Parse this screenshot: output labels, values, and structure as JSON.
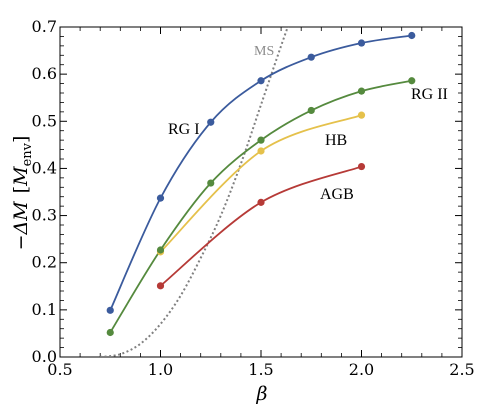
{
  "chart_data": {
    "type": "line",
    "title": "",
    "xlabel": "β",
    "ylabel_symbol": "−ΔM",
    "ylabel_unit_base": "M",
    "ylabel_unit_sub": "env",
    "xlim": [
      0.5,
      2.5
    ],
    "ylim": [
      0.0,
      0.7
    ],
    "xticks": [
      "0.5",
      "1.0",
      "1.5",
      "2.0",
      "2.5"
    ],
    "yticks": [
      "0.0",
      "0.1",
      "0.2",
      "0.3",
      "0.4",
      "0.5",
      "0.6",
      "0.7"
    ],
    "grid": false,
    "series": [
      {
        "name": "RG I",
        "color": "#3b5b9d",
        "x": [
          0.75,
          1.0,
          1.25,
          1.5,
          1.75,
          2.0,
          2.25
        ],
        "y": [
          0.099,
          0.337,
          0.498,
          0.586,
          0.636,
          0.666,
          0.682
        ]
      },
      {
        "name": "RG II",
        "color": "#558a3e",
        "x": [
          0.75,
          1.0,
          1.25,
          1.5,
          1.75,
          2.0,
          2.25
        ],
        "y": [
          0.052,
          0.227,
          0.369,
          0.46,
          0.523,
          0.564,
          0.586
        ]
      },
      {
        "name": "HB",
        "color": "#e5c14b",
        "x": [
          1.0,
          1.5,
          2.0
        ],
        "y": [
          0.223,
          0.437,
          0.513
        ]
      },
      {
        "name": "AGB",
        "color": "#b63a37",
        "x": [
          1.0,
          1.5,
          2.0
        ],
        "y": [
          0.151,
          0.328,
          0.404
        ]
      },
      {
        "name": "MS",
        "color": "#808080",
        "style": "dotted",
        "markers": false,
        "x": [
          0.7,
          0.8,
          0.9,
          1.0,
          1.1,
          1.2,
          1.3,
          1.4,
          1.5,
          1.6,
          1.65
        ],
        "y": [
          0.0,
          0.006,
          0.028,
          0.07,
          0.13,
          0.21,
          0.3,
          0.41,
          0.535,
          0.66,
          0.72
        ]
      }
    ]
  }
}
